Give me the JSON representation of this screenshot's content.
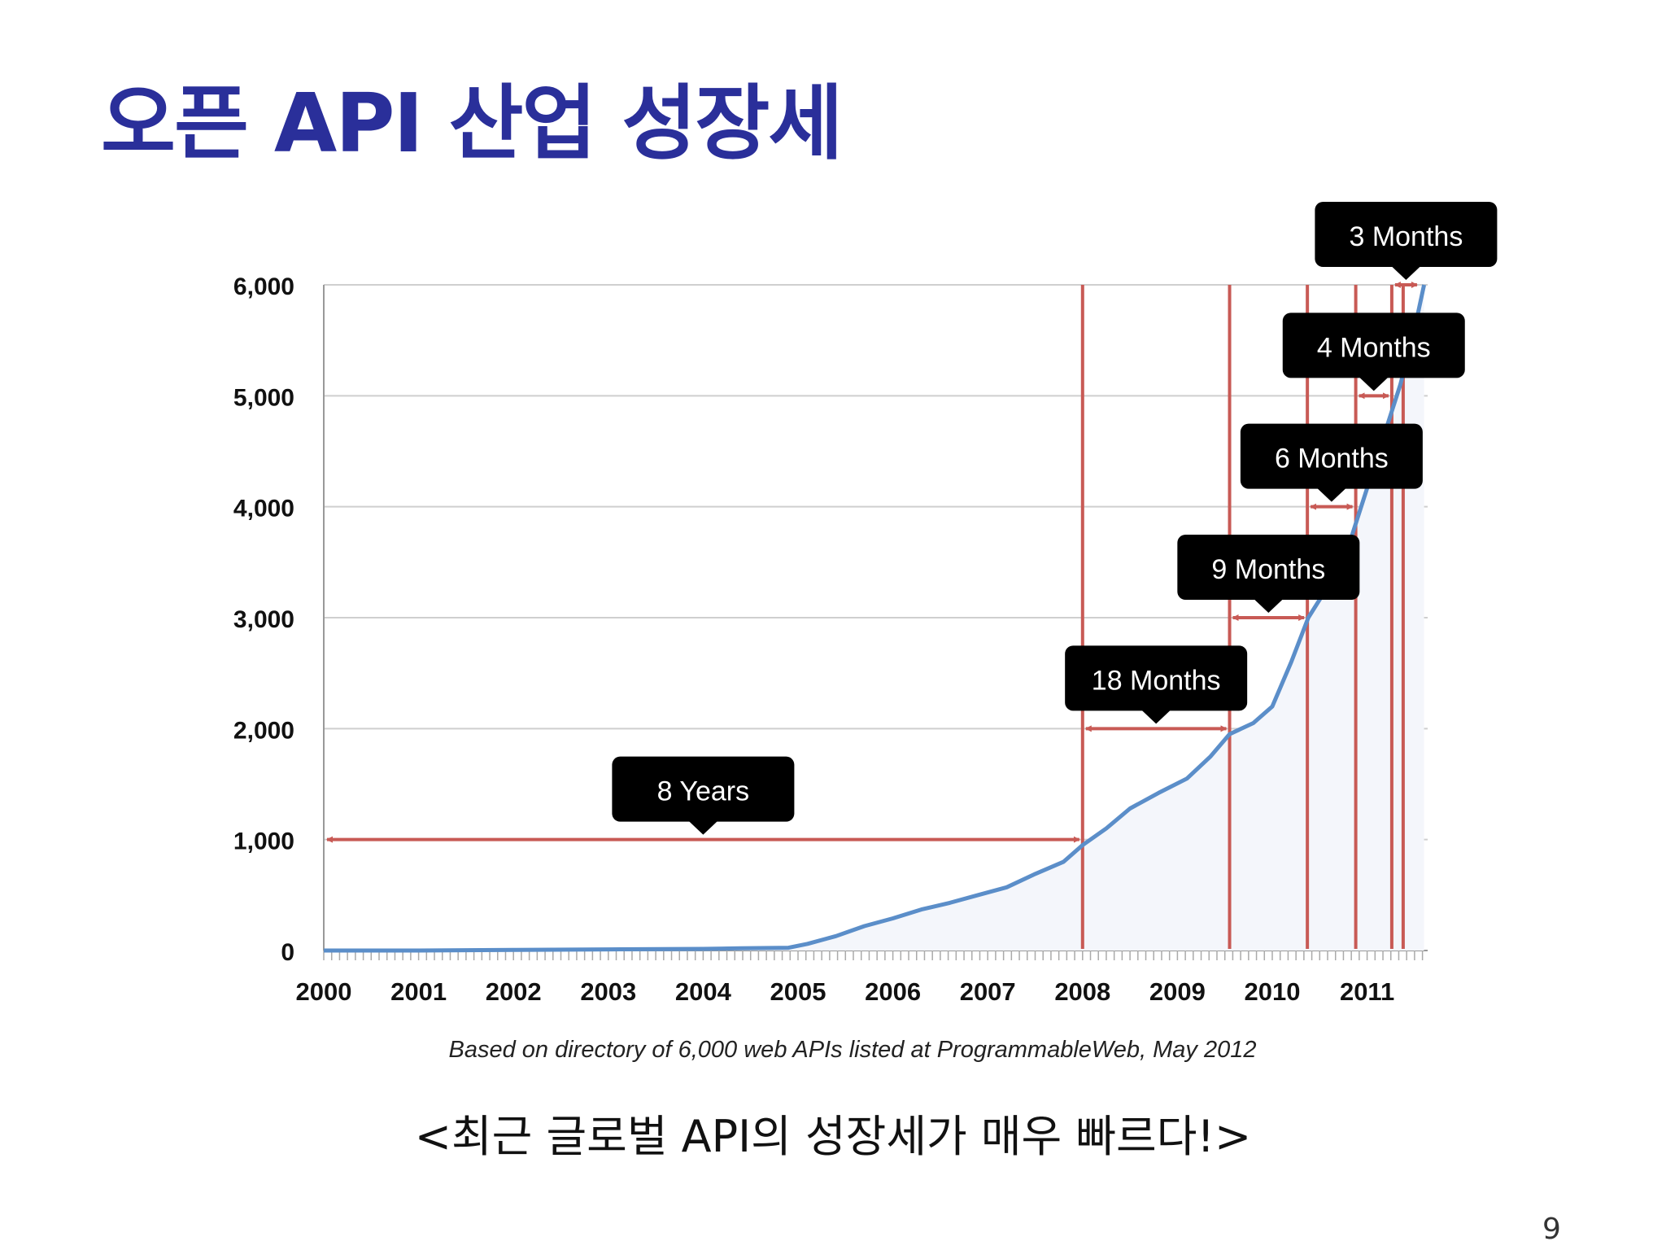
{
  "slide": {
    "title": "오픈 API 산업 성장세",
    "caption": "<최근 글로벌 API의 성장세가 매우 빠르다!>",
    "page_number": "9"
  },
  "colors": {
    "title": "#2a2f9a",
    "line": "#5b8ec9",
    "marker": "#c85a55",
    "callout_bg": "#000000",
    "callout_text": "#ffffff",
    "grid": "#cfcfcf"
  },
  "chart_data": {
    "type": "line",
    "y_ticks": [
      "6,000",
      "5,000",
      "4,000",
      "3,000",
      "2,000",
      "1,000",
      "0"
    ],
    "y_tick_values": [
      6000,
      5000,
      4000,
      3000,
      2000,
      1000,
      0
    ],
    "x_ticks": [
      "2000",
      "2001",
      "2002",
      "2003",
      "2004",
      "2005",
      "2006",
      "2007",
      "2008",
      "2009",
      "2010",
      "2011"
    ],
    "xlim": [
      2000,
      2011.6
    ],
    "ylim": [
      0,
      6000
    ],
    "grid": true,
    "source_note": "Based on directory of 6,000 web APIs listed at ProgrammableWeb, May 2012",
    "series": [
      {
        "name": "Web APIs",
        "points": [
          [
            2000,
            0
          ],
          [
            2001,
            0
          ],
          [
            2002,
            5
          ],
          [
            2003,
            10
          ],
          [
            2004,
            15
          ],
          [
            2004.4,
            20
          ],
          [
            2004.9,
            25
          ],
          [
            2005.1,
            60
          ],
          [
            2005.4,
            130
          ],
          [
            2005.7,
            220
          ],
          [
            2006,
            290
          ],
          [
            2006.3,
            370
          ],
          [
            2006.6,
            430
          ],
          [
            2006.9,
            500
          ],
          [
            2007.2,
            570
          ],
          [
            2007.5,
            690
          ],
          [
            2007.8,
            800
          ],
          [
            2008,
            950
          ],
          [
            2008.25,
            1100
          ],
          [
            2008.5,
            1280
          ],
          [
            2008.8,
            1420
          ],
          [
            2009.1,
            1550
          ],
          [
            2009.35,
            1750
          ],
          [
            2009.55,
            1950
          ],
          [
            2009.8,
            2050
          ],
          [
            2010,
            2200
          ],
          [
            2010.2,
            2600
          ],
          [
            2010.38,
            3000
          ],
          [
            2010.6,
            3300
          ],
          [
            2010.75,
            3500
          ],
          [
            2010.9,
            3900
          ],
          [
            2011.05,
            4300
          ],
          [
            2011.2,
            4700
          ],
          [
            2011.35,
            5100
          ],
          [
            2011.5,
            5600
          ],
          [
            2011.6,
            6000
          ]
        ]
      }
    ],
    "milestones": [
      2008,
      2009.55,
      2010.37,
      2010.88,
      2011.26,
      2011.38
    ],
    "annotations": [
      {
        "label": "8 Years",
        "from": 2000,
        "to": 2008,
        "y": 1000
      },
      {
        "label": "18 Months",
        "from": 2008,
        "to": 2009.55,
        "y": 2000
      },
      {
        "label": "9 Months",
        "from": 2009.55,
        "to": 2010.37,
        "y": 3000
      },
      {
        "label": "6 Months",
        "from": 2010.37,
        "to": 2010.88,
        "y": 4000
      },
      {
        "label": "4 Months",
        "from": 2010.88,
        "to": 2011.26,
        "y": 5000
      },
      {
        "label": "3 Months",
        "from": 2011.26,
        "to": 2011.56,
        "y": 6000
      }
    ]
  }
}
